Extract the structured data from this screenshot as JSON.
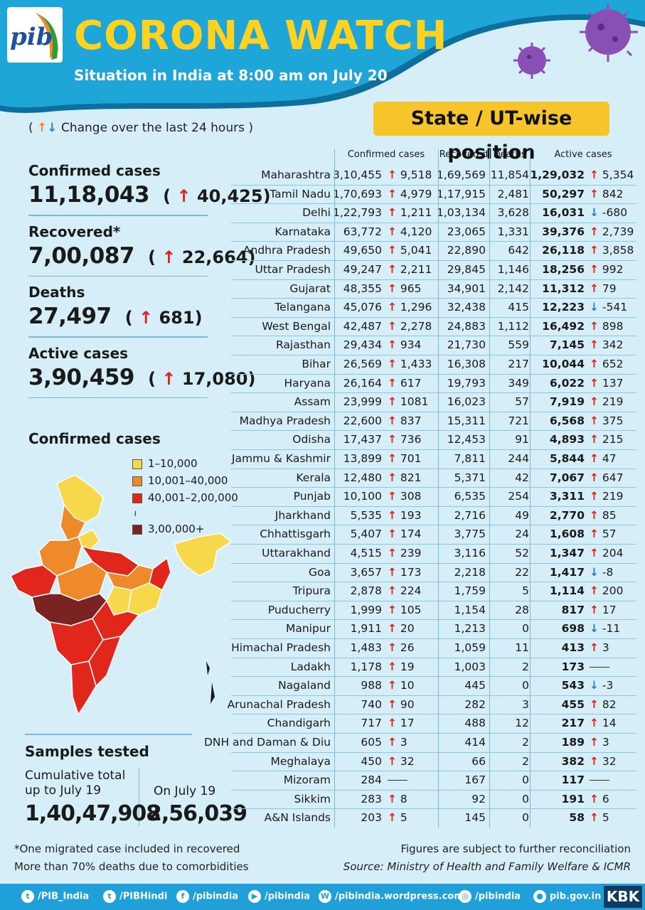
{
  "header": {
    "logo_text": "pib",
    "title": "CORONA WATCH",
    "subtitle": "Situation in India at 8:00 am on July 20",
    "badge": "State / UT-wise position"
  },
  "legend_change": {
    "open": "(",
    "text": "Change over the last 24 hours",
    "close": ")"
  },
  "summary": {
    "confirmed": {
      "label": "Confirmed cases",
      "value": "11,18,043",
      "delta": "40,425"
    },
    "recovered": {
      "label": "Recovered*",
      "value": "7,00,087",
      "delta": "22,664"
    },
    "deaths": {
      "label": "Deaths",
      "value": "27,497",
      "delta": "681"
    },
    "active": {
      "label": "Active cases",
      "value": "3,90,459",
      "delta": "17,080"
    }
  },
  "map": {
    "title": "Confirmed cases",
    "legend": [
      {
        "label": "1–10,000",
        "color": "#f6d84a"
      },
      {
        "label": "10,001–40,000",
        "color": "#ef8a2a"
      },
      {
        "label": "40,001–2,00,000",
        "color": "#e1261c"
      },
      {
        "label": "3,00,000+",
        "color": "#7b2222"
      }
    ]
  },
  "samples": {
    "title": "Samples tested",
    "cum_label_1": "Cumulative total",
    "cum_label_2": "up to July 19",
    "cum_value": "1,40,47,908",
    "day_label": "On July 19",
    "day_value": "2,56,039"
  },
  "table": {
    "headers": {
      "confirmed": "Confirmed cases",
      "recovered": "Recovered",
      "deaths": "Deaths",
      "active": "Active cases"
    },
    "rows": [
      {
        "state": "Maharashtra",
        "conf": "3,10,455",
        "cdir": "up",
        "cchg": "9,518",
        "rec": "1,69,569",
        "deaths": "11,854",
        "active": "1,29,032",
        "adir": "up",
        "achg": "5,354"
      },
      {
        "state": "Tamil Nadu",
        "conf": "1,70,693",
        "cdir": "up",
        "cchg": "4,979",
        "rec": "1,17,915",
        "deaths": "2,481",
        "active": "50,297",
        "adir": "up",
        "achg": "842"
      },
      {
        "state": "Delhi",
        "conf": "1,22,793",
        "cdir": "up",
        "cchg": "1,211",
        "rec": "1,03,134",
        "deaths": "3,628",
        "active": "16,031",
        "adir": "down",
        "achg": "-680"
      },
      {
        "state": "Karnataka",
        "conf": "63,772",
        "cdir": "up",
        "cchg": "4,120",
        "rec": "23,065",
        "deaths": "1,331",
        "active": "39,376",
        "adir": "up",
        "achg": "2,739"
      },
      {
        "state": "Andhra Pradesh",
        "conf": "49,650",
        "cdir": "up",
        "cchg": "5,041",
        "rec": "22,890",
        "deaths": "642",
        "active": "26,118",
        "adir": "up",
        "achg": "3,858"
      },
      {
        "state": "Uttar Pradesh",
        "conf": "49,247",
        "cdir": "up",
        "cchg": "2,211",
        "rec": "29,845",
        "deaths": "1,146",
        "active": "18,256",
        "adir": "up",
        "achg": "992"
      },
      {
        "state": "Gujarat",
        "conf": "48,355",
        "cdir": "up",
        "cchg": "965",
        "rec": "34,901",
        "deaths": "2,142",
        "active": "11,312",
        "adir": "up",
        "achg": "79"
      },
      {
        "state": "Telangana",
        "conf": "45,076",
        "cdir": "up",
        "cchg": "1,296",
        "rec": "32,438",
        "deaths": "415",
        "active": "12,223",
        "adir": "down",
        "achg": "-541"
      },
      {
        "state": "West Bengal",
        "conf": "42,487",
        "cdir": "up",
        "cchg": "2,278",
        "rec": "24,883",
        "deaths": "1,112",
        "active": "16,492",
        "adir": "up",
        "achg": "898"
      },
      {
        "state": "Rajasthan",
        "conf": "29,434",
        "cdir": "up",
        "cchg": "934",
        "rec": "21,730",
        "deaths": "559",
        "active": "7,145",
        "adir": "up",
        "achg": "342"
      },
      {
        "state": "Bihar",
        "conf": "26,569",
        "cdir": "up",
        "cchg": "1,433",
        "rec": "16,308",
        "deaths": "217",
        "active": "10,044",
        "adir": "up",
        "achg": "652"
      },
      {
        "state": "Haryana",
        "conf": "26,164",
        "cdir": "up",
        "cchg": "617",
        "rec": "19,793",
        "deaths": "349",
        "active": "6,022",
        "adir": "up",
        "achg": "137"
      },
      {
        "state": "Assam",
        "conf": "23,999",
        "cdir": "up",
        "cchg": "1081",
        "rec": "16,023",
        "deaths": "57",
        "active": "7,919",
        "adir": "up",
        "achg": "219"
      },
      {
        "state": "Madhya Pradesh",
        "conf": "22,600",
        "cdir": "up",
        "cchg": "837",
        "rec": "15,311",
        "deaths": "721",
        "active": "6,568",
        "adir": "up",
        "achg": "375"
      },
      {
        "state": "Odisha",
        "conf": "17,437",
        "cdir": "up",
        "cchg": "736",
        "rec": "12,453",
        "deaths": "91",
        "active": "4,893",
        "adir": "up",
        "achg": "215"
      },
      {
        "state": "Jammu & Kashmir",
        "conf": "13,899",
        "cdir": "up",
        "cchg": "701",
        "rec": "7,811",
        "deaths": "244",
        "active": "5,844",
        "adir": "up",
        "achg": "47"
      },
      {
        "state": "Kerala",
        "conf": "12,480",
        "cdir": "up",
        "cchg": "821",
        "rec": "5,371",
        "deaths": "42",
        "active": "7,067",
        "adir": "up",
        "achg": "647"
      },
      {
        "state": "Punjab",
        "conf": "10,100",
        "cdir": "up",
        "cchg": "308",
        "rec": "6,535",
        "deaths": "254",
        "active": "3,311",
        "adir": "up",
        "achg": "219"
      },
      {
        "state": "Jharkhand",
        "conf": "5,535",
        "cdir": "up",
        "cchg": "193",
        "rec": "2,716",
        "deaths": "49",
        "active": "2,770",
        "adir": "up",
        "achg": "85"
      },
      {
        "state": "Chhattisgarh",
        "conf": "5,407",
        "cdir": "up",
        "cchg": "174",
        "rec": "3,775",
        "deaths": "24",
        "active": "1,608",
        "adir": "up",
        "achg": "57"
      },
      {
        "state": "Uttarakhand",
        "conf": "4,515",
        "cdir": "up",
        "cchg": "239",
        "rec": "3,116",
        "deaths": "52",
        "active": "1,347",
        "adir": "up",
        "achg": "204"
      },
      {
        "state": "Goa",
        "conf": "3,657",
        "cdir": "up",
        "cchg": "173",
        "rec": "2,218",
        "deaths": "22",
        "active": "1,417",
        "adir": "down",
        "achg": "-8"
      },
      {
        "state": "Tripura",
        "conf": "2,878",
        "cdir": "up",
        "cchg": "224",
        "rec": "1,759",
        "deaths": "5",
        "active": "1,114",
        "adir": "up",
        "achg": "200"
      },
      {
        "state": "Puducherry",
        "conf": "1,999",
        "cdir": "up",
        "cchg": "105",
        "rec": "1,154",
        "deaths": "28",
        "active": "817",
        "adir": "up",
        "achg": "17"
      },
      {
        "state": "Manipur",
        "conf": "1,911",
        "cdir": "up",
        "cchg": "20",
        "rec": "1,213",
        "deaths": "0",
        "active": "698",
        "adir": "down",
        "achg": "-11"
      },
      {
        "state": "Himachal Pradesh",
        "conf": "1,483",
        "cdir": "up",
        "cchg": "26",
        "rec": "1,059",
        "deaths": "11",
        "active": "413",
        "adir": "up",
        "achg": "3"
      },
      {
        "state": "Ladakh",
        "conf": "1,178",
        "cdir": "up",
        "cchg": "19",
        "rec": "1,003",
        "deaths": "2",
        "active": "173",
        "adir": "none",
        "achg": ""
      },
      {
        "state": "Nagaland",
        "conf": "988",
        "cdir": "up",
        "cchg": "10",
        "rec": "445",
        "deaths": "0",
        "active": "543",
        "adir": "down",
        "achg": "-3"
      },
      {
        "state": "Arunachal Pradesh",
        "conf": "740",
        "cdir": "up",
        "cchg": "90",
        "rec": "282",
        "deaths": "3",
        "active": "455",
        "adir": "up",
        "achg": "82"
      },
      {
        "state": "Chandigarh",
        "conf": "717",
        "cdir": "up",
        "cchg": "17",
        "rec": "488",
        "deaths": "12",
        "active": "217",
        "adir": "up",
        "achg": "14"
      },
      {
        "state": "DNH and Daman & Diu",
        "conf": "605",
        "cdir": "up",
        "cchg": "3",
        "rec": "414",
        "deaths": "2",
        "active": "189",
        "adir": "up",
        "achg": "3"
      },
      {
        "state": "Meghalaya",
        "conf": "450",
        "cdir": "up",
        "cchg": "32",
        "rec": "66",
        "deaths": "2",
        "active": "382",
        "adir": "up",
        "achg": "32"
      },
      {
        "state": "Mizoram",
        "conf": "284",
        "cdir": "none",
        "cchg": "",
        "rec": "167",
        "deaths": "0",
        "active": "117",
        "adir": "none",
        "achg": ""
      },
      {
        "state": "Sikkim",
        "conf": "283",
        "cdir": "up",
        "cchg": "8",
        "rec": "92",
        "deaths": "0",
        "active": "191",
        "adir": "up",
        "achg": "6"
      },
      {
        "state": "A&N Islands",
        "conf": "203",
        "cdir": "up",
        "cchg": "5",
        "rec": "145",
        "deaths": "0",
        "active": "58",
        "adir": "up",
        "achg": "5"
      }
    ]
  },
  "footer": {
    "note1": "*One migrated case included in recovered",
    "note2": "More than 70% deaths due to comorbidities",
    "note3": "Figures are subject to further reconciliation",
    "source": "Source: Ministry of Health and Family Welfare & ICMR"
  },
  "social": [
    {
      "icon": "twitter-icon",
      "glyph": "t",
      "label": "/PIB_India"
    },
    {
      "icon": "twitter-icon",
      "glyph": "t",
      "label": "/PIBHindi"
    },
    {
      "icon": "facebook-icon",
      "glyph": "f",
      "label": "/pibindia"
    },
    {
      "icon": "youtube-icon",
      "glyph": "▶",
      "label": "/pibindia"
    },
    {
      "icon": "wordpress-icon",
      "glyph": "W",
      "label": "/pibindia.wordpress.com"
    },
    {
      "icon": "instagram-icon",
      "glyph": "◎",
      "label": "/pibindia"
    },
    {
      "icon": "web-icon",
      "glyph": "●",
      "label": "pib.gov.in"
    }
  ],
  "kbk": "KBK",
  "colors": {
    "header_blue": "#1fa6d8",
    "title_yellow": "#ffd21f",
    "up_arrow": "#e0201e",
    "down_arrow": "#1e7fd6",
    "virus_purple": "#8a4fb5"
  }
}
